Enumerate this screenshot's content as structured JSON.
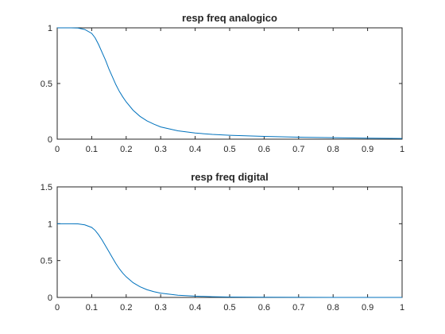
{
  "chart_data": [
    {
      "type": "line",
      "title": "resp freq analogico",
      "xlabel": "",
      "ylabel": "",
      "xlim": [
        0,
        1
      ],
      "ylim": [
        0,
        1
      ],
      "xticks": [
        0,
        0.1,
        0.2,
        0.3,
        0.4,
        0.5,
        0.6,
        0.7,
        0.8,
        0.9,
        1
      ],
      "xtick_labels": [
        "0",
        "0.1",
        "0.2",
        "0.3",
        "0.4",
        "0.5",
        "0.6",
        "0.7",
        "0.8",
        "0.9",
        "1"
      ],
      "yticks": [
        0,
        0.5,
        1
      ],
      "ytick_labels": [
        "0",
        "0.5",
        "1"
      ],
      "grid": false,
      "series": [
        {
          "color": "#0072BD",
          "x": [
            0,
            0.02,
            0.04,
            0.06,
            0.08,
            0.1,
            0.11,
            0.12,
            0.13,
            0.14,
            0.15,
            0.16,
            0.17,
            0.18,
            0.19,
            0.2,
            0.22,
            0.24,
            0.26,
            0.28,
            0.3,
            0.35,
            0.4,
            0.45,
            0.5,
            0.6,
            0.7,
            0.8,
            0.9,
            1
          ],
          "y": [
            1,
            1,
            1,
            0.998,
            0.985,
            0.95,
            0.91,
            0.85,
            0.78,
            0.71,
            0.63,
            0.56,
            0.49,
            0.43,
            0.38,
            0.335,
            0.26,
            0.205,
            0.165,
            0.135,
            0.11,
            0.075,
            0.055,
            0.043,
            0.035,
            0.025,
            0.018,
            0.013,
            0.009,
            0.006
          ]
        }
      ]
    },
    {
      "type": "line",
      "title": "resp freq digital",
      "xlabel": "",
      "ylabel": "",
      "xlim": [
        0,
        1
      ],
      "ylim": [
        0,
        1.5
      ],
      "xticks": [
        0,
        0.1,
        0.2,
        0.3,
        0.4,
        0.5,
        0.6,
        0.7,
        0.8,
        0.9,
        1
      ],
      "xtick_labels": [
        "0",
        "0.1",
        "0.2",
        "0.3",
        "0.4",
        "0.5",
        "0.6",
        "0.7",
        "0.8",
        "0.9",
        "1"
      ],
      "yticks": [
        0,
        0.5,
        1,
        1.5
      ],
      "ytick_labels": [
        "0",
        "0.5",
        "1",
        "1.5"
      ],
      "grid": false,
      "series": [
        {
          "color": "#0072BD",
          "x": [
            0,
            0.02,
            0.04,
            0.06,
            0.08,
            0.1,
            0.11,
            0.12,
            0.13,
            0.14,
            0.15,
            0.16,
            0.17,
            0.18,
            0.19,
            0.2,
            0.22,
            0.24,
            0.26,
            0.28,
            0.3,
            0.35,
            0.4,
            0.45,
            0.5,
            0.6,
            0.7,
            0.8,
            0.9,
            1
          ],
          "y": [
            1,
            1,
            1,
            0.998,
            0.985,
            0.95,
            0.91,
            0.85,
            0.78,
            0.7,
            0.62,
            0.54,
            0.46,
            0.39,
            0.33,
            0.28,
            0.2,
            0.145,
            0.105,
            0.078,
            0.058,
            0.03,
            0.017,
            0.01,
            0.006,
            0.002,
            0.001,
            0,
            0,
            0
          ]
        }
      ]
    }
  ]
}
